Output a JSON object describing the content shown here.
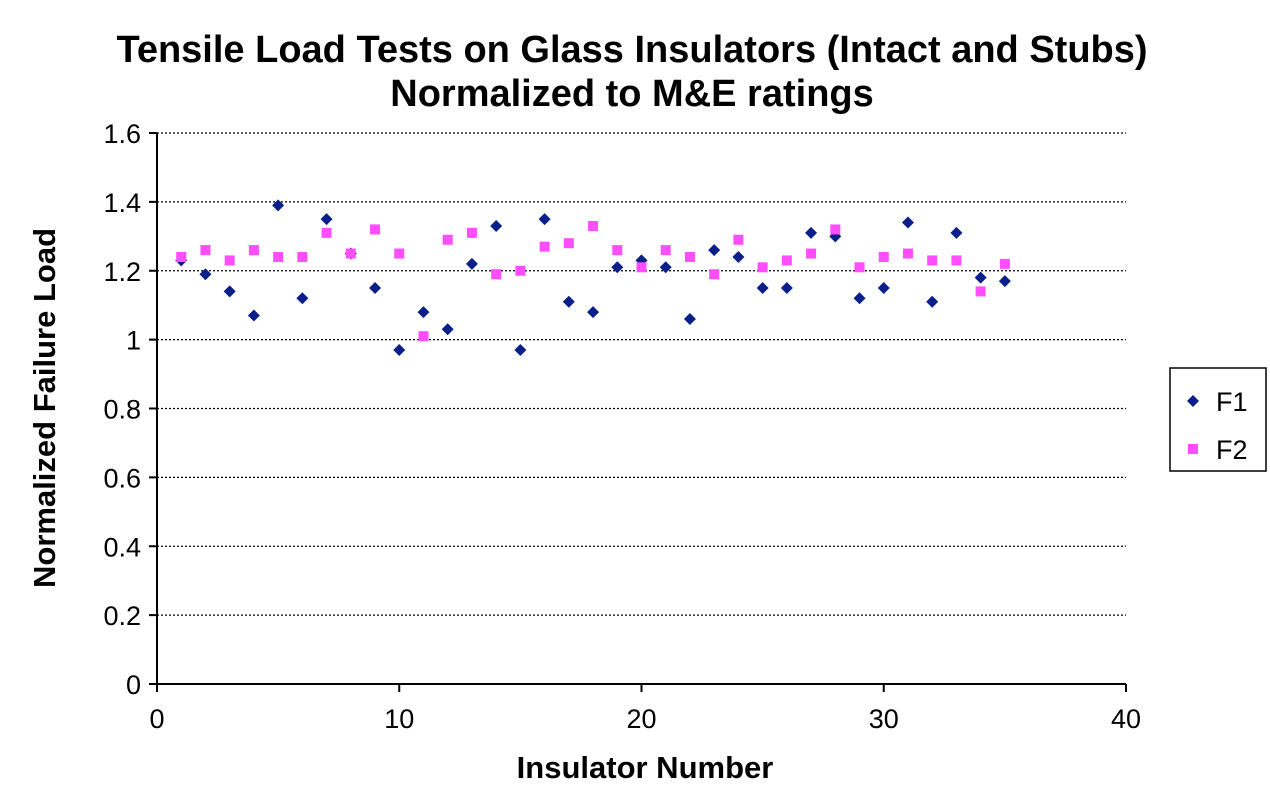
{
  "chart_data": {
    "type": "scatter",
    "title": "Tensile Load Tests on Glass Insulators (Intact and Stubs)",
    "subtitle": "Normalized to M&E ratings",
    "xlabel": "Insulator Number",
    "ylabel": "Normalized Failure Load",
    "xlim": [
      0,
      40
    ],
    "ylim": [
      0,
      1.6
    ],
    "x_ticks": [
      "0",
      "10",
      "20",
      "30",
      "40"
    ],
    "y_ticks": [
      "0",
      "0.2",
      "0.4",
      "0.6",
      "0.8",
      "1",
      "1.2",
      "1.4",
      "1.6"
    ],
    "grid": "horizontal dotted",
    "legend_position": "right",
    "series": [
      {
        "name": "F1",
        "marker": "diamond",
        "color": "#0a1f8a",
        "x": [
          1,
          2,
          3,
          4,
          5,
          6,
          7,
          8,
          9,
          10,
          11,
          12,
          13,
          14,
          15,
          16,
          17,
          18,
          19,
          20,
          21,
          22,
          23,
          24,
          25,
          26,
          27,
          28,
          29,
          30,
          31,
          32,
          33,
          34,
          35
        ],
        "y": [
          1.23,
          1.19,
          1.14,
          1.07,
          1.39,
          1.12,
          1.35,
          1.25,
          1.15,
          0.97,
          1.08,
          1.03,
          1.22,
          1.33,
          0.97,
          1.35,
          1.11,
          1.08,
          1.21,
          1.23,
          1.21,
          1.06,
          1.26,
          1.24,
          1.15,
          1.15,
          1.31,
          1.3,
          1.12,
          1.15,
          1.34,
          1.11,
          1.31,
          1.18,
          1.17
        ]
      },
      {
        "name": "F2",
        "marker": "square",
        "color": "#ff4dff",
        "x": [
          1,
          2,
          3,
          4,
          5,
          6,
          7,
          8,
          9,
          10,
          11,
          12,
          13,
          14,
          15,
          16,
          17,
          18,
          19,
          20,
          21,
          22,
          23,
          24,
          25,
          26,
          27,
          28,
          29,
          30,
          31,
          32,
          33,
          34,
          35
        ],
        "y": [
          1.24,
          1.26,
          1.23,
          1.26,
          1.24,
          1.24,
          1.31,
          1.25,
          1.32,
          1.25,
          1.01,
          1.29,
          1.31,
          1.19,
          1.2,
          1.27,
          1.28,
          1.33,
          1.26,
          1.21,
          1.26,
          1.24,
          1.19,
          1.29,
          1.21,
          1.23,
          1.25,
          1.32,
          1.21,
          1.24,
          1.25,
          1.23,
          1.23,
          1.14,
          1.22
        ]
      }
    ]
  }
}
